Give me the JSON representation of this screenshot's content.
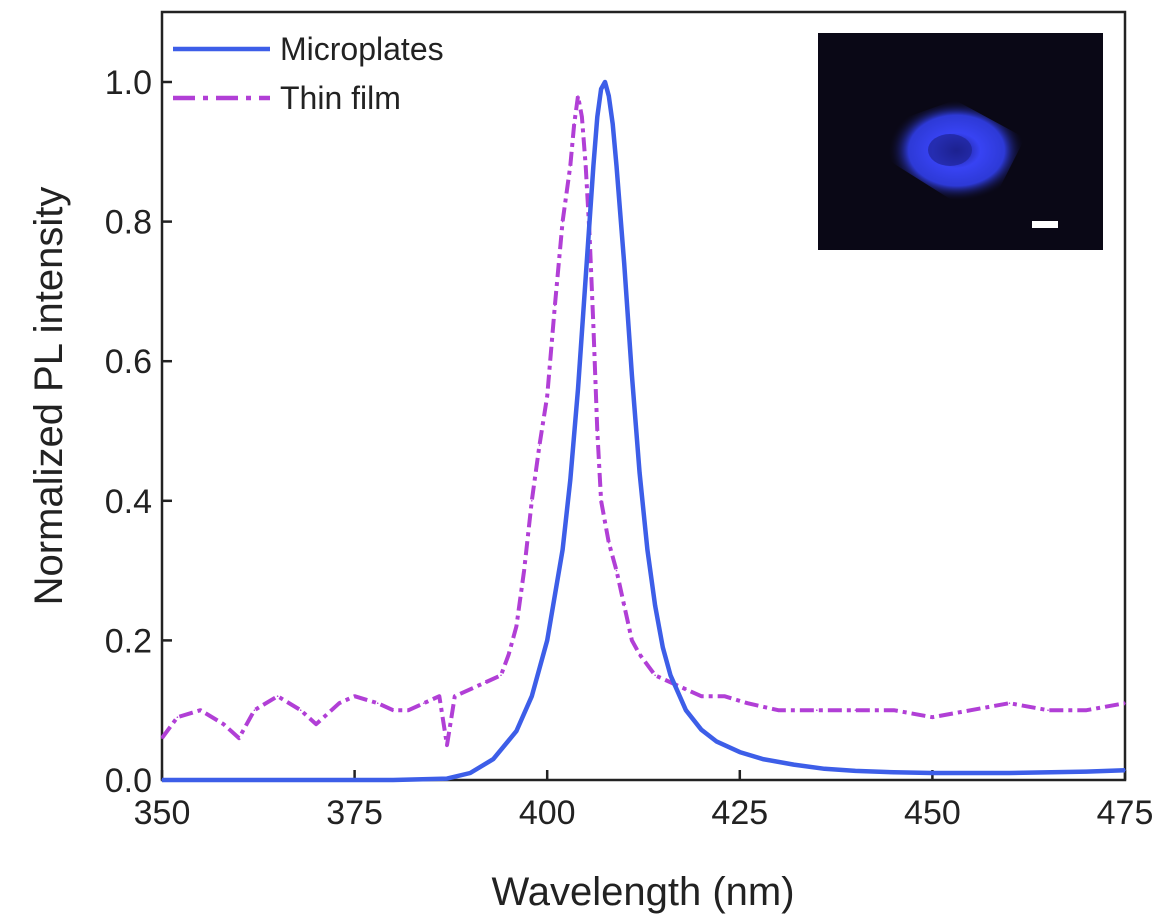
{
  "chart_data": {
    "type": "line",
    "xlabel": "Wavelength (nm)",
    "ylabel": "Normalized PL intensity",
    "xlim": [
      350,
      475
    ],
    "ylim": [
      0,
      1.0
    ],
    "xticks": [
      "350",
      "375",
      "400",
      "425",
      "450",
      "475"
    ],
    "yticks": [
      "0.0",
      "0.2",
      "0.4",
      "0.6",
      "0.8",
      "1.0"
    ],
    "legend_position": "top-left",
    "series": [
      {
        "name": "Microplates",
        "style": "solid",
        "color": "#3d5ee8",
        "x": [
          350,
          380,
          387,
          390,
          393,
          396,
          398,
          400,
          402,
          403,
          404,
          405,
          406,
          406.5,
          407,
          407.5,
          408,
          408.5,
          409,
          410,
          411,
          412,
          413,
          414,
          415,
          416,
          418,
          420,
          422,
          425,
          428,
          432,
          436,
          440,
          445,
          450,
          460,
          470,
          475
        ],
        "y": [
          0.0,
          0.0,
          0.002,
          0.01,
          0.03,
          0.07,
          0.12,
          0.2,
          0.33,
          0.43,
          0.56,
          0.72,
          0.88,
          0.95,
          0.99,
          1.0,
          0.98,
          0.94,
          0.88,
          0.74,
          0.58,
          0.44,
          0.33,
          0.25,
          0.19,
          0.15,
          0.1,
          0.072,
          0.055,
          0.04,
          0.03,
          0.022,
          0.016,
          0.013,
          0.011,
          0.01,
          0.01,
          0.012,
          0.014
        ]
      },
      {
        "name": "Thin film",
        "style": "dash-dot",
        "color": "#b13fd6",
        "x": [
          350,
          352,
          355,
          358,
          360,
          362,
          365,
          368,
          370,
          373,
          375,
          378,
          380,
          382,
          384,
          386,
          387,
          388,
          390,
          392,
          394,
          395,
          396,
          397,
          398,
          399,
          400,
          401,
          402,
          403,
          403.5,
          404,
          404.5,
          405,
          405.5,
          406,
          406.5,
          407,
          408,
          409,
          410,
          411,
          412,
          414,
          416,
          418,
          420,
          423,
          426,
          430,
          435,
          440,
          445,
          450,
          455,
          460,
          465,
          470,
          475
        ],
        "y": [
          0.06,
          0.09,
          0.1,
          0.08,
          0.06,
          0.1,
          0.12,
          0.1,
          0.08,
          0.11,
          0.12,
          0.11,
          0.1,
          0.1,
          0.11,
          0.12,
          0.05,
          0.12,
          0.13,
          0.14,
          0.15,
          0.18,
          0.22,
          0.3,
          0.4,
          0.48,
          0.55,
          0.68,
          0.8,
          0.88,
          0.94,
          0.98,
          0.95,
          0.88,
          0.78,
          0.65,
          0.5,
          0.4,
          0.34,
          0.3,
          0.25,
          0.2,
          0.18,
          0.15,
          0.14,
          0.13,
          0.12,
          0.12,
          0.11,
          0.1,
          0.1,
          0.1,
          0.1,
          0.09,
          0.1,
          0.11,
          0.1,
          0.1,
          0.11
        ]
      }
    ],
    "inset": {
      "background": "#0a0816",
      "glow_color": "#3a46ff"
    }
  }
}
